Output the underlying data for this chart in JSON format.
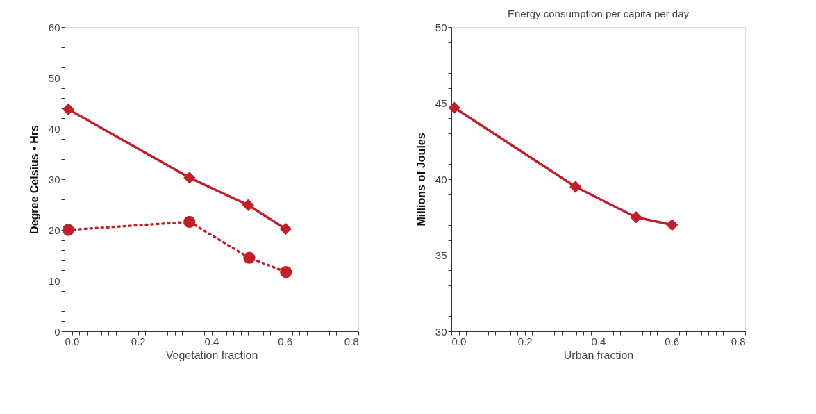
{
  "chart_data": [
    {
      "type": "line",
      "xlabel": "Vegetation fraction",
      "ylabel": "Degree Celsius • Hrs",
      "xlim": [
        0,
        0.8
      ],
      "ylim": [
        0,
        60
      ],
      "grid": false,
      "legend": false,
      "xticks": [
        {
          "value": 0,
          "label": "0.0"
        },
        {
          "value": 0.02,
          "label": null
        },
        {
          "value": 0.04,
          "label": null
        },
        {
          "value": 0.06,
          "label": null
        },
        {
          "value": 0.08,
          "label": null
        },
        {
          "value": 0.1,
          "label": null
        },
        {
          "value": 0.12,
          "label": null
        },
        {
          "value": 0.14,
          "label": null
        },
        {
          "value": 0.16,
          "label": null
        },
        {
          "value": 0.18,
          "label": null
        },
        {
          "value": 0.2,
          "label": "0.2"
        },
        {
          "value": 0.22,
          "label": null
        },
        {
          "value": 0.24,
          "label": null
        },
        {
          "value": 0.26,
          "label": null
        },
        {
          "value": 0.28,
          "label": null
        },
        {
          "value": 0.3,
          "label": null
        },
        {
          "value": 0.32,
          "label": null
        },
        {
          "value": 0.34,
          "label": null
        },
        {
          "value": 0.36,
          "label": null
        },
        {
          "value": 0.38,
          "label": null
        },
        {
          "value": 0.4,
          "label": "0.4"
        },
        {
          "value": 0.42,
          "label": null
        },
        {
          "value": 0.44,
          "label": null
        },
        {
          "value": 0.46,
          "label": null
        },
        {
          "value": 0.48,
          "label": null
        },
        {
          "value": 0.5,
          "label": null
        },
        {
          "value": 0.52,
          "label": null
        },
        {
          "value": 0.54,
          "label": null
        },
        {
          "value": 0.56,
          "label": null
        },
        {
          "value": 0.58,
          "label": null
        },
        {
          "value": 0.6,
          "label": "0.6"
        },
        {
          "value": 0.62,
          "label": null
        },
        {
          "value": 0.64,
          "label": null
        },
        {
          "value": 0.66,
          "label": null
        },
        {
          "value": 0.68,
          "label": null
        },
        {
          "value": 0.7,
          "label": null
        },
        {
          "value": 0.72,
          "label": null
        },
        {
          "value": 0.74,
          "label": null
        },
        {
          "value": 0.76,
          "label": null
        },
        {
          "value": 0.78,
          "label": null
        },
        {
          "value": 0.8,
          "label": "0.8"
        }
      ],
      "yticks": [
        0,
        {
          "value": 2,
          "label": null
        },
        {
          "value": 4,
          "label": null
        },
        {
          "value": 6,
          "label": null
        },
        {
          "value": 8,
          "label": null
        },
        10,
        {
          "value": 12,
          "label": null
        },
        {
          "value": 14,
          "label": null
        },
        {
          "value": 16,
          "label": null
        },
        {
          "value": 18,
          "label": null
        },
        20,
        {
          "value": 22,
          "label": null
        },
        {
          "value": 24,
          "label": null
        },
        {
          "value": 26,
          "label": null
        },
        {
          "value": 28,
          "label": null
        },
        30,
        {
          "value": 32,
          "label": null
        },
        {
          "value": 34,
          "label": null
        },
        {
          "value": 36,
          "label": null
        },
        {
          "value": 38,
          "label": null
        },
        40,
        {
          "value": 42,
          "label": null
        },
        {
          "value": 44,
          "label": null
        },
        {
          "value": 46,
          "label": null
        },
        {
          "value": 48,
          "label": null
        },
        50,
        {
          "value": 52,
          "label": null
        },
        {
          "value": 54,
          "label": null
        },
        {
          "value": 56,
          "label": null
        },
        {
          "value": 58,
          "label": null
        },
        60
      ],
      "series": [
        {
          "color": "#c1202b",
          "marker": "diamond",
          "line_style": "solid",
          "x": [
            0.01,
            0.34,
            0.5,
            0.602
          ],
          "values": [
            43.8,
            30.3,
            24.9,
            20.2
          ]
        },
        {
          "color": "#c1202b",
          "marker": "circle",
          "line_style": "dotted",
          "x": [
            0.01,
            0.34,
            0.503,
            0.603
          ],
          "values": [
            20.0,
            21.6,
            14.5,
            11.7
          ]
        }
      ]
    },
    {
      "type": "line",
      "title": "Energy consumption per capita per day",
      "xlabel": "Urban fraction",
      "ylabel": "Millions of Joules",
      "xlim": [
        0,
        0.8
      ],
      "ylim": [
        30,
        50
      ],
      "grid": false,
      "legend": false,
      "xticks": [
        {
          "value": 0,
          "label": "0.0"
        },
        {
          "value": 0.02,
          "label": null
        },
        {
          "value": 0.04,
          "label": null
        },
        {
          "value": 0.06,
          "label": null
        },
        {
          "value": 0.08,
          "label": null
        },
        {
          "value": 0.1,
          "label": null
        },
        {
          "value": 0.12,
          "label": null
        },
        {
          "value": 0.14,
          "label": null
        },
        {
          "value": 0.16,
          "label": null
        },
        {
          "value": 0.18,
          "label": null
        },
        {
          "value": 0.2,
          "label": "0.2"
        },
        {
          "value": 0.22,
          "label": null
        },
        {
          "value": 0.24,
          "label": null
        },
        {
          "value": 0.26,
          "label": null
        },
        {
          "value": 0.28,
          "label": null
        },
        {
          "value": 0.3,
          "label": null
        },
        {
          "value": 0.32,
          "label": null
        },
        {
          "value": 0.34,
          "label": null
        },
        {
          "value": 0.36,
          "label": null
        },
        {
          "value": 0.38,
          "label": null
        },
        {
          "value": 0.4,
          "label": "0.4"
        },
        {
          "value": 0.42,
          "label": null
        },
        {
          "value": 0.44,
          "label": null
        },
        {
          "value": 0.46,
          "label": null
        },
        {
          "value": 0.48,
          "label": null
        },
        {
          "value": 0.5,
          "label": null
        },
        {
          "value": 0.52,
          "label": null
        },
        {
          "value": 0.54,
          "label": null
        },
        {
          "value": 0.56,
          "label": null
        },
        {
          "value": 0.58,
          "label": null
        },
        {
          "value": 0.6,
          "label": "0.6"
        },
        {
          "value": 0.62,
          "label": null
        },
        {
          "value": 0.64,
          "label": null
        },
        {
          "value": 0.66,
          "label": null
        },
        {
          "value": 0.68,
          "label": null
        },
        {
          "value": 0.7,
          "label": null
        },
        {
          "value": 0.72,
          "label": null
        },
        {
          "value": 0.74,
          "label": null
        },
        {
          "value": 0.76,
          "label": null
        },
        {
          "value": 0.78,
          "label": null
        },
        {
          "value": 0.8,
          "label": "0.8"
        }
      ],
      "yticks": [
        30,
        {
          "value": 31,
          "label": null
        },
        {
          "value": 32,
          "label": null
        },
        {
          "value": 33,
          "label": null
        },
        {
          "value": 34,
          "label": null
        },
        35,
        {
          "value": 36,
          "label": null
        },
        {
          "value": 37,
          "label": null
        },
        {
          "value": 38,
          "label": null
        },
        {
          "value": 39,
          "label": null
        },
        40,
        {
          "value": 41,
          "label": null
        },
        {
          "value": 42,
          "label": null
        },
        {
          "value": 43,
          "label": null
        },
        {
          "value": 44,
          "label": null
        },
        45,
        {
          "value": 46,
          "label": null
        },
        {
          "value": 47,
          "label": null
        },
        {
          "value": 48,
          "label": null
        },
        {
          "value": 49,
          "label": null
        },
        50
      ],
      "series": [
        {
          "color": "#c1202b",
          "marker": "diamond",
          "line_style": "solid",
          "x": [
            0.008,
            0.338,
            0.503,
            0.601
          ],
          "values": [
            44.7,
            39.5,
            37.5,
            37.0
          ]
        }
      ]
    }
  ]
}
